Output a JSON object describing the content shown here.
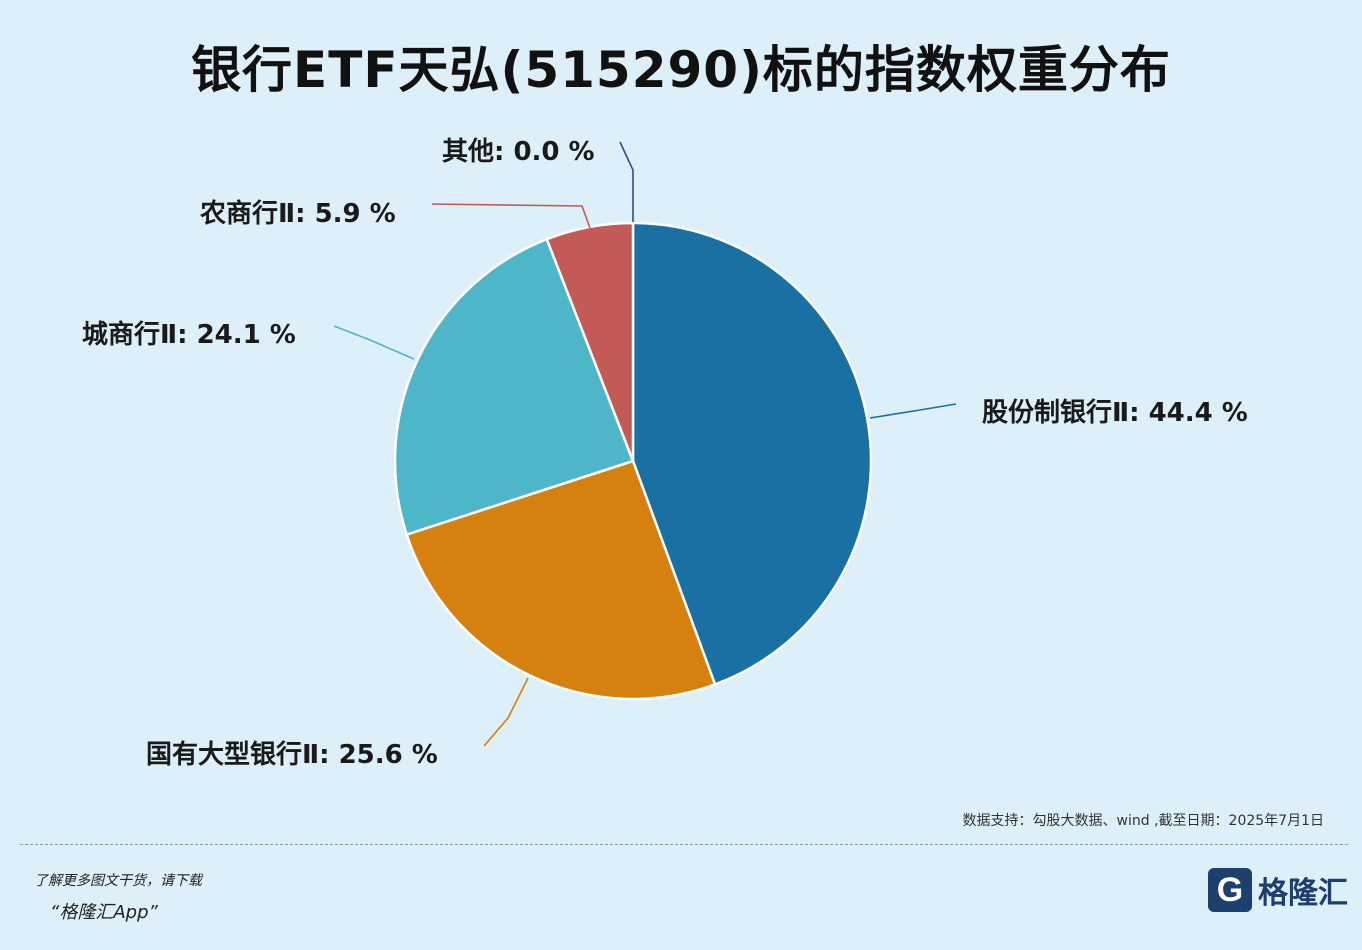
{
  "title": "银行ETF天弘(515290)标的指数权重分布",
  "source_note": "数据支持：勾股大数据、wind ,截至日期：2025年7月1日",
  "promo": {
    "line1": "了解更多图文干货，请下载",
    "line2": "“格隆汇App”"
  },
  "logo": {
    "text": "格隆汇",
    "icon": "G"
  },
  "chart_data": {
    "type": "pie",
    "title": "银行ETF天弘(515290)标的指数权重分布",
    "slices": [
      {
        "label": "股份制银行Ⅱ",
        "value": 44.4,
        "display": "股份制银行Ⅱ: 44.4 %",
        "color": "#1a6fa3"
      },
      {
        "label": "国有大型银行Ⅱ",
        "value": 25.6,
        "display": "国有大型银行Ⅱ: 25.6 %",
        "color": "#d5800f"
      },
      {
        "label": "城商行Ⅱ",
        "value": 24.1,
        "display": "城商行Ⅱ: 24.1 %",
        "color": "#4db6c8"
      },
      {
        "label": "农商行Ⅱ",
        "value": 5.9,
        "display": "农商行Ⅱ: 5.9 %",
        "color": "#c45a56"
      },
      {
        "label": "其他",
        "value": 0.0,
        "display": "其他: 0.0 %",
        "color": "#2f4d8a"
      }
    ]
  }
}
